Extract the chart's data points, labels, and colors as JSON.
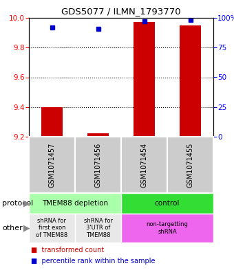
{
  "title": "GDS5077 / ILMN_1793770",
  "samples": [
    "GSM1071457",
    "GSM1071456",
    "GSM1071454",
    "GSM1071455"
  ],
  "transformed_counts": [
    9.4,
    9.225,
    9.97,
    9.95
  ],
  "percentile_ranks": [
    92,
    91,
    97,
    98
  ],
  "ylim": [
    9.2,
    10.0
  ],
  "yticks_left": [
    9.2,
    9.4,
    9.6,
    9.8,
    10.0
  ],
  "yticks_right": [
    0,
    25,
    50,
    75,
    100
  ],
  "bar_color": "#cc0000",
  "dot_color": "#0000cc",
  "bar_bottom": 9.2,
  "protocol_groups": [
    {
      "label": "TMEM88 depletion",
      "start": 0,
      "end": 2,
      "color": "#aaffaa"
    },
    {
      "label": "control",
      "start": 2,
      "end": 4,
      "color": "#33dd33"
    }
  ],
  "other_groups": [
    {
      "label": "shRNA for\nfirst exon\nof TMEM88",
      "start": 0,
      "end": 1,
      "color": "#e8e8e8"
    },
    {
      "label": "shRNA for\n3'UTR of\nTMEM88",
      "start": 1,
      "end": 2,
      "color": "#e8e8e8"
    },
    {
      "label": "non-targetting\nshRNA",
      "start": 2,
      "end": 4,
      "color": "#ee66ee"
    }
  ],
  "legend_bar_label": "transformed count",
  "legend_dot_label": "percentile rank within the sample",
  "protocol_label": "protocol",
  "other_label": "other",
  "sample_box_color": "#cccccc",
  "bg_color": "#ffffff"
}
